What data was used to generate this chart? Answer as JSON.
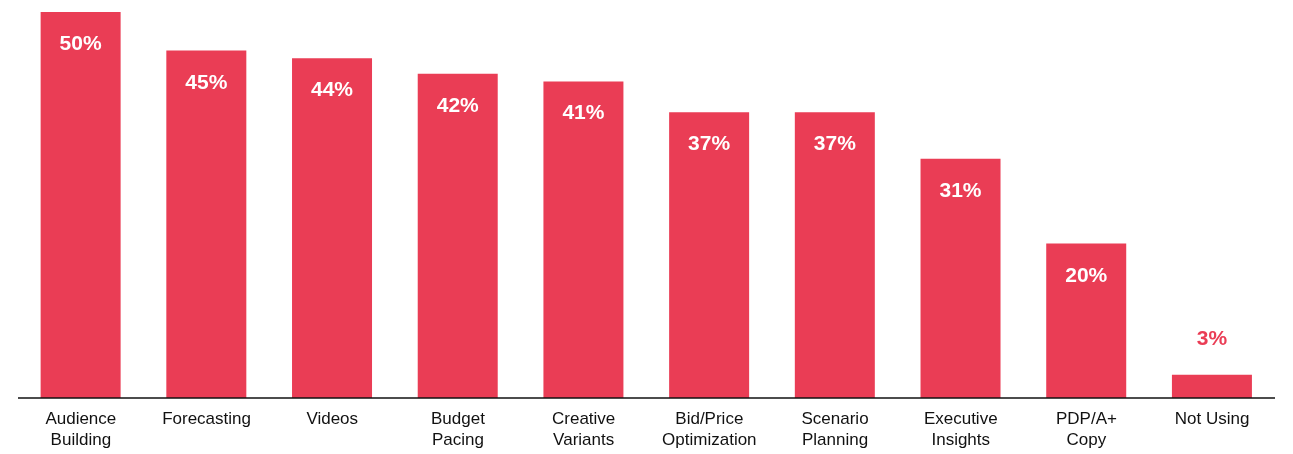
{
  "chart_data": {
    "type": "bar",
    "categories": [
      "Audience Building",
      "Forecasting",
      "Videos",
      "Budget Pacing",
      "Creative Variants",
      "Bid/Price Optimization",
      "Scenario Planning",
      "Executive Insights",
      "PDP/A+ Copy",
      "Not Using"
    ],
    "values": [
      50,
      45,
      44,
      42,
      41,
      37,
      37,
      31,
      20,
      3
    ],
    "value_labels": [
      "50%",
      "45%",
      "44%",
      "42%",
      "41%",
      "37%",
      "37%",
      "31%",
      "20%",
      "3%"
    ],
    "color": "#ea3d55",
    "tick_labels": "x",
    "grid": false,
    "legend": false
  }
}
